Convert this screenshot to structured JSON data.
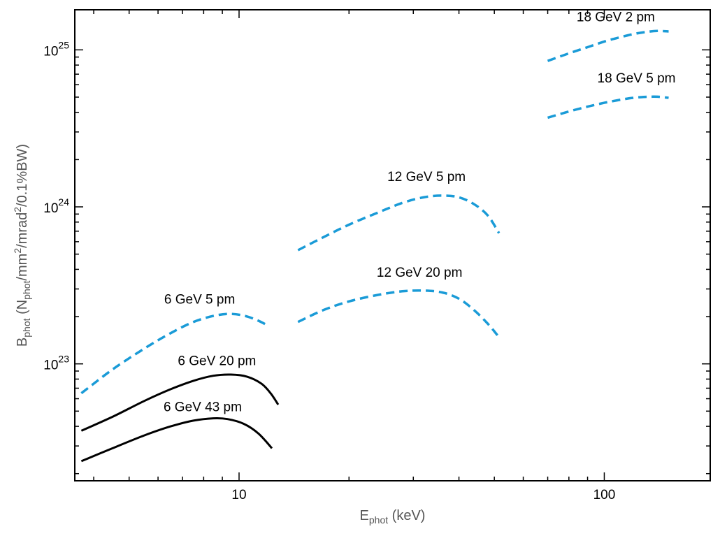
{
  "chart_data": {
    "type": "line",
    "title": "",
    "xlabel": {
      "main": "E",
      "sub": "phot",
      "rest": " (keV)"
    },
    "ylabel": {
      "main": "B",
      "sub": "phot",
      "rest1": " (N",
      "sub2": "phot",
      "rest2": "/mm",
      "sup1": "2",
      "rest3": "/mrad",
      "sup2": "2",
      "rest4": "/0.1%BW)"
    },
    "x_scale": "log",
    "y_scale": "log",
    "xlim": [
      3.55,
      195
    ],
    "ylim": [
      1.8e+22,
      1.8e+25
    ],
    "x_ticks": [
      {
        "value": 10,
        "label": "10"
      },
      {
        "value": 100,
        "label": "100"
      }
    ],
    "y_ticks": [
      {
        "value": 1e+23,
        "base": "10",
        "exp": "23"
      },
      {
        "value": 1e+24,
        "base": "10",
        "exp": "24"
      },
      {
        "value": 1e+25,
        "base": "10",
        "exp": "25"
      }
    ],
    "colors": {
      "solid": "#000000",
      "dashed": "#1a9bd7",
      "axis": "#000000",
      "title": "#555555"
    },
    "series": [
      {
        "name": "6 GeV 43 pm",
        "style": "solid",
        "x": [
          3.7,
          4.5,
          5.5,
          6.5,
          7.5,
          8.5,
          9.3,
          10.3,
          11.3,
          12.3
        ],
        "y": [
          2.4e+22,
          2.9e+22,
          3.5e+22,
          4e+22,
          4.35e+22,
          4.5e+22,
          4.45e+22,
          4.15e+22,
          3.6e+22,
          2.9e+22
        ]
      },
      {
        "name": "6 GeV 20 pm",
        "style": "solid",
        "x": [
          3.7,
          4.5,
          5.5,
          6.5,
          7.5,
          8.5,
          9.5,
          10.5,
          11.5,
          12.2,
          12.8
        ],
        "y": [
          3.75e+22,
          4.6e+22,
          5.8e+22,
          6.9e+22,
          7.8e+22,
          8.4e+22,
          8.55e+22,
          8.3e+22,
          7.5e+22,
          6.5e+22,
          5.5e+22
        ]
      },
      {
        "name": "6 GeV 5 pm",
        "style": "dashed",
        "x": [
          3.7,
          4.5,
          5.5,
          6.5,
          7.5,
          8.5,
          9.4,
          10.3,
          11.2,
          11.9
        ],
        "y": [
          6.5e+22,
          9.2e+22,
          1.25e+23,
          1.57e+23,
          1.85e+23,
          2.02e+23,
          2.08e+23,
          2.03e+23,
          1.9e+23,
          1.77e+23
        ]
      },
      {
        "name": "12 GeV 20 pm",
        "style": "dashed",
        "x": [
          14.5,
          17,
          20,
          24,
          28,
          32,
          36,
          40,
          44,
          48,
          51
        ],
        "y": [
          1.85e+23,
          2.2e+23,
          2.5e+23,
          2.75e+23,
          2.9e+23,
          2.93e+23,
          2.85e+23,
          2.6e+23,
          2.2e+23,
          1.8e+23,
          1.52e+23
        ]
      },
      {
        "name": "12 GeV 5 pm",
        "style": "dashed",
        "x": [
          14.5,
          17,
          20,
          24,
          28,
          32,
          36,
          40,
          44,
          48,
          51.5
        ],
        "y": [
          5.3e+23,
          6.4e+23,
          7.7e+23,
          9.2e+23,
          1.06e+24,
          1.15e+24,
          1.18e+24,
          1.15e+24,
          1.04e+24,
          8.8e+23,
          6.8e+23
        ]
      },
      {
        "name": "18 GeV 5 pm",
        "style": "dashed",
        "x": [
          70,
          80,
          90,
          100,
          110,
          120,
          130,
          140,
          150
        ],
        "y": [
          3.7e+24,
          4.05e+24,
          4.35e+24,
          4.6e+24,
          4.8e+24,
          4.95e+24,
          5.02e+24,
          5.03e+24,
          4.95e+24
        ]
      },
      {
        "name": "18 GeV 2 pm",
        "style": "dashed",
        "x": [
          70,
          80,
          90,
          100,
          110,
          120,
          130,
          140,
          150
        ],
        "y": [
          8.5e+24,
          9.5e+24,
          1.04e+25,
          1.13e+25,
          1.2e+25,
          1.26e+25,
          1.3e+25,
          1.32e+25,
          1.31e+25
        ]
      }
    ],
    "annotations": [
      {
        "text": "6 GeV 43 pm",
        "x": 7.95,
        "y": 5e+22
      },
      {
        "text": "6 GeV 20 pm",
        "x": 8.7,
        "y": 9.8e+22
      },
      {
        "text": "6 GeV 5 pm",
        "x": 7.8,
        "y": 2.42e+23
      },
      {
        "text": "12 GeV 20 pm",
        "x": 31.2,
        "y": 3.58e+23
      },
      {
        "text": "12 GeV 5 pm",
        "x": 32.6,
        "y": 1.46e+24
      },
      {
        "text": "18 GeV 5 pm",
        "x": 122.5,
        "y": 6.2e+24
      },
      {
        "text": "18 GeV 2 pm",
        "x": 107.5,
        "y": 1.52e+25
      }
    ]
  }
}
